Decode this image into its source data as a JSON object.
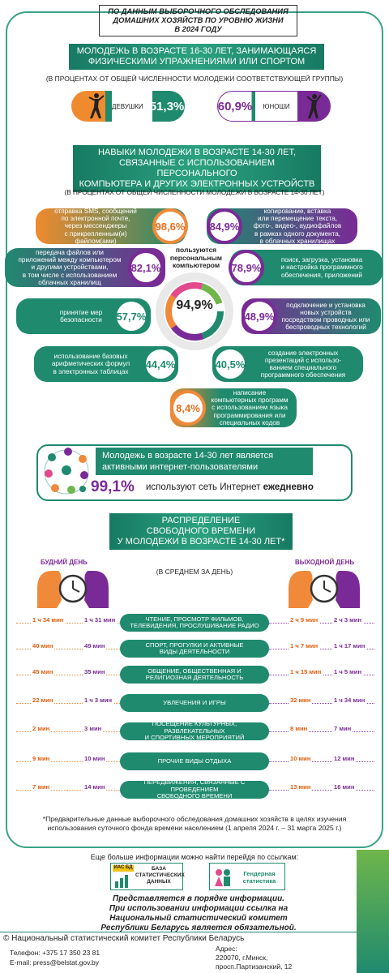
{
  "header": {
    "line1": "ПО ДАННЫМ ВЫБОРОЧНОГО ОБСЛЕДОВАНИЯ",
    "line2": "ДОМАШНИХ ХОЗЯЙСТВ ПО УРОВНЮ ЖИЗНИ",
    "line3": "В 2024 ГОДУ"
  },
  "sport": {
    "title1": "МОЛОДЕЖЬ В ВОЗРАСТЕ 16-30 ЛЕТ, ЗАНИМАЮЩАЯСЯ",
    "title2": "ФИЗИЧЕСКИМИ УПРАЖНЕНИЯМИ ИЛИ СПОРТОМ",
    "subtitle": "(В ПРОЦЕНТАХ ОТ ОБЩЕЙ ЧИСЛЕННОСТИ МОЛОДЕЖИ СООТВЕТСТВУЮЩЕЙ ГРУППЫ)",
    "girls_label": "ДЕВУШКИ",
    "girls_value": "51,3%",
    "boys_label": "ЮНОШИ",
    "boys_value": "60,9%"
  },
  "skills": {
    "title1": "НАВЫКИ МОЛОДЕЖИ В ВОЗРАСТЕ 14-30 ЛЕТ,",
    "title2": "СВЯЗАННЫЕ С ИСПОЛЬЗОВАНИЕМ ПЕРСОНАЛЬНОГО",
    "title3": "КОМПЬЮТЕРА И ДРУГИХ ЭЛЕКТРОННЫХ  УСТРОЙСТВ",
    "subtitle": "(В ПРОЦЕНТАХ ОТ ОБЩЕЙ ЧИСЛЕННОСТИ МОЛОДЕЖИ В ВОЗРАСТЕ 14-30 ЛЕТ)",
    "center_label1": "пользуются",
    "center_label2": "персональным",
    "center_label3": "компьютером",
    "center_value": "94,9%",
    "items": [
      {
        "l1": "отправка SMS, сообщений",
        "l2": "по электронной почте,",
        "l3": "через мессенджеры",
        "l4": "с прикрепленным(и)",
        "l5": "файлом(ами)",
        "value": "98,6%"
      },
      {
        "l1": "копирование, вставка",
        "l2": "или перемещение текста,",
        "l3": "фото-, видео-, аудиофайлов",
        "l4": "в рамках одного документа,",
        "l5": "в облачных хранилищах",
        "value": "84,9%"
      },
      {
        "l1": "передача файлов или",
        "l2": "приложений между компьютером",
        "l3": "и другими устройствами,",
        "l4": "в том числе с использованием",
        "l5": "облачных хранилищ",
        "value": "82,1%"
      },
      {
        "l1": "поиск, загрузка, установка",
        "l2": "и настройка программного",
        "l3": "обеспечения, приложений",
        "l4": "",
        "l5": "",
        "value": "78,9%"
      },
      {
        "l1": "принятие мер",
        "l2": "безопасности",
        "l3": "",
        "l4": "",
        "l5": "",
        "value": "57,7%"
      },
      {
        "l1": "подключение и установка",
        "l2": "новых устройств",
        "l3": "посредством проводных или",
        "l4": "беспроводных технологий",
        "l5": "",
        "value": "48,9%"
      },
      {
        "l1": "использование базовых",
        "l2": "арифметических формул",
        "l3": "в электронных таблицах",
        "l4": "",
        "l5": "",
        "value": "44,4%"
      },
      {
        "l1": "создание электронных",
        "l2": "презентаций с использо-",
        "l3": "ванием специального",
        "l4": "программного обеспечения",
        "l5": "",
        "value": "40,5%"
      },
      {
        "l1": "написание",
        "l2": "компьютерных программ",
        "l3": "с использованием языка",
        "l4": "программирования или",
        "l5": "специальных кодов",
        "value": "8,4%"
      }
    ]
  },
  "internet": {
    "line1": "Молодежь в возрасте 14-30 лет является",
    "line2": "активными интернет-пользователями",
    "value": "99,1%",
    "text": "используют сеть Интернет",
    "emph": "ежедневно"
  },
  "time": {
    "title1": "РАСПРЕДЕЛЕНИЕ",
    "title2": "СВОБОДНОГО ВРЕМЕНИ",
    "title3": "У МОЛОДЕЖИ В ВОЗРАСТЕ 14-30 ЛЕТ*",
    "weekday": "БУДНИЙ ДЕНЬ",
    "weekend": "ВЫХОДНОЙ ДЕНЬ",
    "subtitle": "(В СРЕДНЕМ ЗА ДЕНЬ)",
    "rows": [
      {
        "l1": "ЧТЕНИЕ, ПРОСМОТР ФИЛЬМОВ,",
        "l2": "ТЕЛЕВИДЕНИЯ, ПРОСЛУШИВАНИЕ РАДИО",
        "wd_f": "1 ч 34 мин",
        "wd_m": "1 ч 31 мин",
        "we_f": "2 ч 9 мин",
        "we_m": "2 ч 3 мин"
      },
      {
        "l1": "СПОРТ, ПРОГУЛКИ И АКТИВНЫЕ",
        "l2": "ВИДЫ ДЕЯТЕЛЬНОСТИ",
        "wd_f": "40 мин",
        "wd_m": "49 мин",
        "we_f": "1 ч 7 мин",
        "we_m": "1 ч 17 мин"
      },
      {
        "l1": "ОБЩЕНИЕ, ОБЩЕСТВЕННАЯ И",
        "l2": "РЕЛИГИОЗНАЯ ДЕЯТЕЛЬНОСТЬ",
        "wd_f": "45 мин",
        "wd_m": "35 мин",
        "we_f": "1 ч 15 мин",
        "we_m": "1 ч 5 мин"
      },
      {
        "l1": "УВЛЕЧЕНИЯ И ИГРЫ",
        "l2": "",
        "wd_f": "22 мин",
        "wd_m": "1 ч 3 мин",
        "we_f": "32 мин",
        "we_m": "1 ч 34 мин"
      },
      {
        "l1": "ПОСЕЩЕНИЕ КУЛЬТУРНЫХ, РАЗВЛЕКАТЕЛЬНЫХ",
        "l2": "И СПОРТИВНЫХ МЕРОПРИЯТИЙ",
        "wd_f": "2 мин",
        "wd_m": "3 мин",
        "we_f": "8 мин",
        "we_m": "7 мин"
      },
      {
        "l1": "ПРОЧИЕ ВИДЫ ОТДЫХА",
        "l2": "",
        "wd_f": "9 мин",
        "wd_m": "10 мин",
        "we_f": "10 мин",
        "we_m": "12 мин"
      },
      {
        "l1": "ПЕРЕДВИЖЕНИЯ, СВЯЗАННЫЕ С ПРОВЕДЕНИЕМ",
        "l2": "СВОБОДНОГО ВРЕМЕНИ",
        "wd_f": "7 мин",
        "wd_m": "14 мин",
        "we_f": "13 мин",
        "we_m": "16 мин"
      }
    ],
    "footnote1": "*Предварительные данные выборочного обследования домашних хозяйств в целях изучения",
    "footnote2": "использования суточного фонда времени населением (1 апреля 2024 г. – 31 марта 2025 г.)"
  },
  "links": {
    "intro": "Еще больше  информации можно найти перейдя по ссылкам:",
    "db_top": "ИАС БД",
    "db_text1": "БАЗА",
    "db_text2": "СТАТИСТИЧЕСКИХ",
    "db_text3": "ДАННЫХ",
    "gender1": "Гендерная",
    "gender2": "статистика"
  },
  "notice": {
    "l1": "Представляется в порядке информации.",
    "l2": "При использовании информации ссылка на Национальный статистический комитет",
    "l3": "Республики Беларусь является обязательной."
  },
  "footer": {
    "copyright": "© Национальный статистический комитет Республики Беларусь",
    "phone": "Телефон: +375 17 350 23 81",
    "email": "E-mail: press@belstat.gov.by",
    "addr1": "Адрес:",
    "addr2": "220070, г.Минск,",
    "addr3": "просп.Партизанский, 12"
  },
  "colors": {
    "green": "#1f8a6e",
    "orange": "#f0893a",
    "purple": "#7a2a96"
  }
}
